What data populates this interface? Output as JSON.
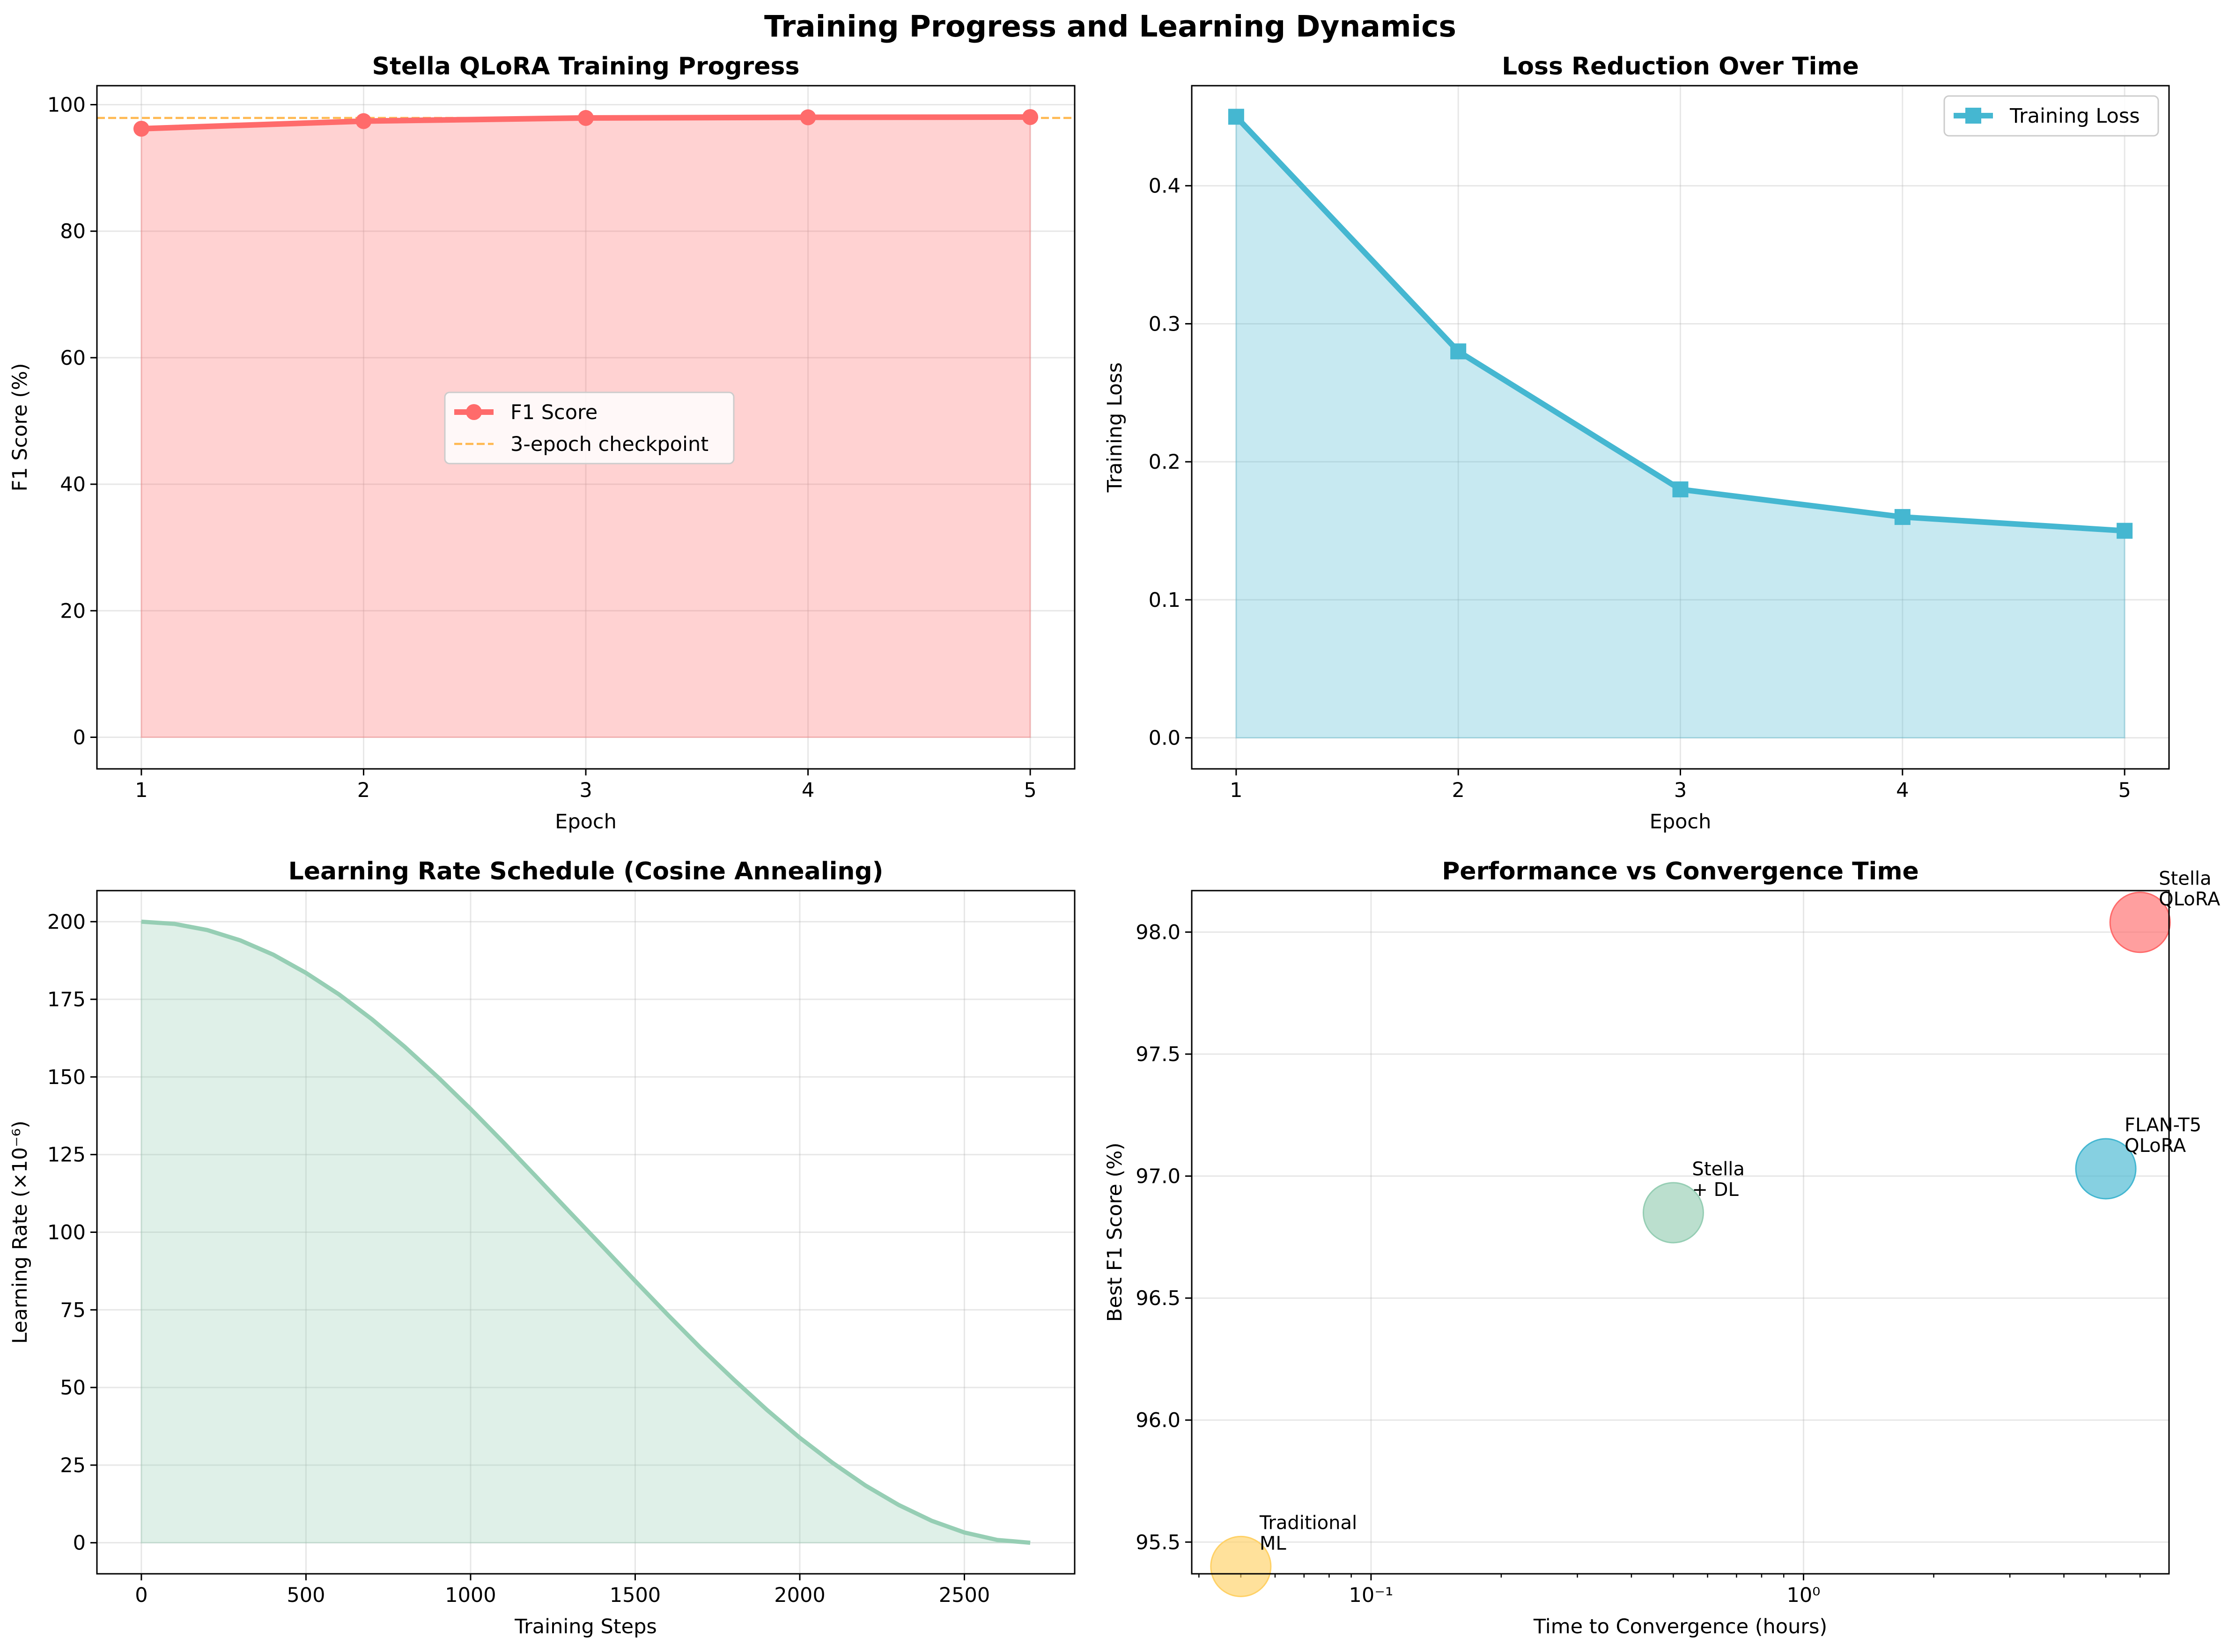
{
  "figure_title": "Training Progress and Learning Dynamics",
  "chart_data": [
    {
      "type": "line",
      "title": "Stella QLoRA Training Progress",
      "xlabel": "Epoch",
      "ylabel": "F1 Score (%)",
      "x": [
        1,
        2,
        3,
        4,
        5
      ],
      "xlim": [
        0.8,
        5.2
      ],
      "ylim": [
        -5,
        103
      ],
      "xticks": [
        "1",
        "2",
        "3",
        "4",
        "5"
      ],
      "yticks": [
        "0",
        "20",
        "40",
        "60",
        "80",
        "100"
      ],
      "grid": true,
      "filled": true,
      "series": [
        {
          "name": "F1 Score",
          "values": [
            96.2,
            97.4,
            97.9,
            98.0,
            98.04
          ],
          "color": "#ff6b6b",
          "marker": "circle"
        },
        {
          "name": "3-epoch checkpoint",
          "y_constant": 97.9,
          "color": "#ffa726",
          "style": "dashed"
        }
      ],
      "legend": {
        "position": "center",
        "entries": [
          "F1 Score",
          "3-epoch checkpoint"
        ]
      }
    },
    {
      "type": "line",
      "title": "Loss Reduction Over Time",
      "xlabel": "Epoch",
      "ylabel": "Training Loss",
      "x": [
        1,
        2,
        3,
        4,
        5
      ],
      "xlim": [
        0.8,
        5.2
      ],
      "ylim": [
        -0.0225,
        0.4725
      ],
      "xticks": [
        "1",
        "2",
        "3",
        "4",
        "5"
      ],
      "yticks": [
        "0.0",
        "0.1",
        "0.2",
        "0.3",
        "0.4"
      ],
      "grid": true,
      "filled": true,
      "series": [
        {
          "name": "Training Loss",
          "values": [
            0.45,
            0.28,
            0.18,
            0.16,
            0.15
          ],
          "color": "#45b7d1",
          "marker": "square"
        }
      ],
      "legend": {
        "position": "top-right",
        "entries": [
          "Training Loss"
        ]
      }
    },
    {
      "type": "area",
      "title": "Learning Rate Schedule (Cosine Annealing)",
      "xlabel": "Training Steps",
      "ylabel": "Learning Rate (×10⁻⁶)",
      "xlim": [
        -135,
        2835
      ],
      "ylim": [
        -10,
        210
      ],
      "xticks": [
        "0",
        "500",
        "1000",
        "1500",
        "2000",
        "2500"
      ],
      "yticks": [
        "0",
        "25",
        "50",
        "75",
        "100",
        "125",
        "150",
        "175",
        "200"
      ],
      "grid": true,
      "series": [
        {
          "values_x": [
            0,
            100,
            200,
            300,
            400,
            500,
            600,
            700,
            800,
            900,
            1000,
            1100,
            1200,
            1300,
            1400,
            1500,
            1600,
            1700,
            1800,
            1900,
            2000,
            2100,
            2200,
            2300,
            2400,
            2500,
            2600,
            2700
          ],
          "values_y": [
            200.0,
            199.3,
            197.3,
            194.0,
            189.4,
            183.5,
            176.6,
            168.6,
            159.7,
            150.0,
            139.7,
            128.9,
            117.8,
            106.6,
            95.5,
            84.3,
            73.3,
            62.6,
            52.5,
            42.8,
            33.8,
            25.7,
            18.4,
            12.2,
            7.1,
            3.3,
            0.9,
            0.0
          ],
          "color": "#96ceb4"
        }
      ]
    },
    {
      "type": "scatter",
      "title": "Performance vs Convergence Time",
      "xlabel": "Time to Convergence (hours)",
      "ylabel": "Best F1 Score (%)",
      "xscale": "log",
      "xlim": [
        0.0385,
        7.0
      ],
      "ylim": [
        95.37,
        98.17
      ],
      "xticks": [
        "10⁻¹",
        "10⁰"
      ],
      "yticks": [
        "95.5",
        "96.0",
        "96.5",
        "97.0",
        "97.5",
        "98.0"
      ],
      "grid": true,
      "points": [
        {
          "label": "Traditional\nML",
          "x": 0.05,
          "y": 95.4,
          "color": "#ffd166"
        },
        {
          "label": "Stella\n+ DL",
          "x": 0.5,
          "y": 96.85,
          "color": "#96ceb4"
        },
        {
          "label": "FLAN-T5\nQLoRA",
          "x": 5.0,
          "y": 97.03,
          "color": "#45b7d1"
        },
        {
          "label": "Stella\nQLoRA",
          "x": 6.0,
          "y": 98.04,
          "color": "#ff6b6b"
        }
      ]
    }
  ]
}
